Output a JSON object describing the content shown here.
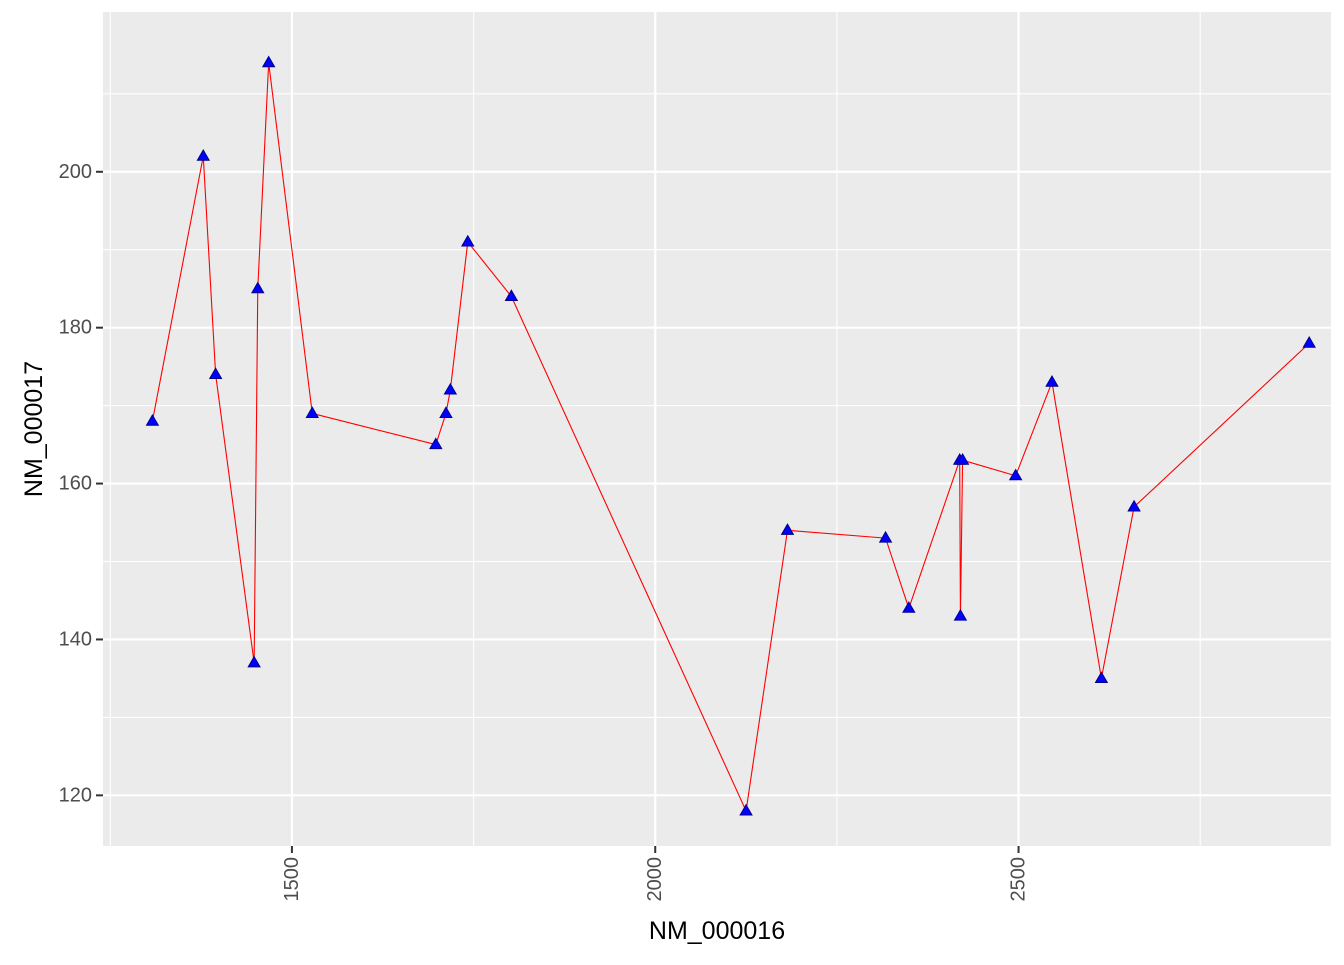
{
  "chart_data": {
    "type": "line",
    "title": "",
    "xlabel": "NM_000016",
    "ylabel": "NM_000017",
    "xlim": [
      1240,
      2930
    ],
    "ylim": [
      113.5,
      220.5
    ],
    "x_ticks": [
      1500,
      2000,
      2500
    ],
    "x_tick_labels": [
      "1500",
      "2000",
      "2500"
    ],
    "x_minor_ticks": [
      1250,
      1750,
      2250,
      2750
    ],
    "y_ticks": [
      120,
      140,
      160,
      180,
      200
    ],
    "y_tick_labels": [
      "120",
      "140",
      "160",
      "180",
      "200"
    ],
    "y_minor_ticks": [
      130,
      150,
      170,
      190,
      210
    ],
    "grid": true,
    "legend": "none",
    "x_tick_label_rotation": "vertical",
    "colors": {
      "panel_background": "#EBEBEB",
      "grid": "#FFFFFF",
      "line": "#FF0000",
      "marker_fill": "#0000FF",
      "marker_edge": "#00008B"
    },
    "marker": "triangle",
    "series": [
      {
        "x": [
          1308,
          1378,
          1395,
          1448,
          1453,
          1468,
          1528,
          1698,
          1712,
          1718,
          1742,
          1802,
          2125,
          2182,
          2317,
          2349,
          2419,
          2420,
          2423,
          2496,
          2546,
          2614,
          2659,
          2900
        ],
        "y": [
          168,
          202,
          174,
          137,
          185,
          214,
          169,
          165,
          169,
          172,
          191,
          184,
          118,
          154,
          153,
          144,
          163,
          143,
          163,
          161,
          173,
          135,
          157,
          178
        ]
      }
    ]
  }
}
